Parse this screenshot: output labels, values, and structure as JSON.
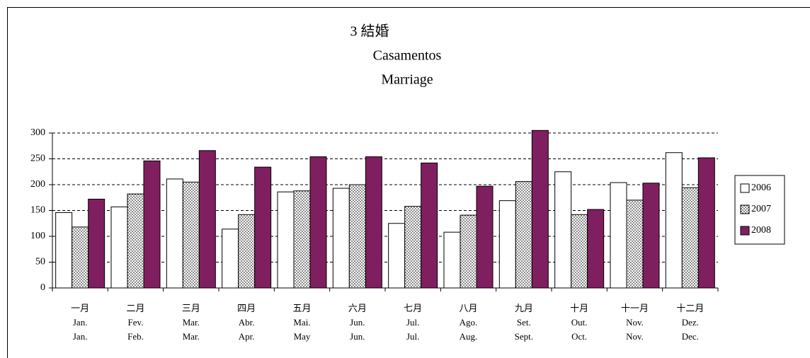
{
  "chart_data": {
    "type": "bar",
    "title": [
      "3 結婚",
      "Casamentos",
      "Marriage"
    ],
    "categories": [
      [
        "一月",
        "Jan.",
        "Jan."
      ],
      [
        "二月",
        "Fev.",
        "Feb."
      ],
      [
        "三月",
        "Mar.",
        "Mar."
      ],
      [
        "四月",
        "Abr.",
        "Apr."
      ],
      [
        "五月",
        "Mai.",
        "May"
      ],
      [
        "六月",
        "Jun.",
        "Jun."
      ],
      [
        "七月",
        "Jul.",
        "Jul."
      ],
      [
        "八月",
        "Ago.",
        "Aug."
      ],
      [
        "九月",
        "Set.",
        "Sept."
      ],
      [
        "十月",
        "Out.",
        "Oct."
      ],
      [
        "十一月",
        "Nov.",
        "Nov."
      ],
      [
        "十二月",
        "Dez.",
        "Dec."
      ]
    ],
    "series": [
      {
        "name": "2006",
        "color": "#ffffff",
        "values": [
          146,
          157,
          211,
          114,
          186,
          193,
          125,
          108,
          169,
          225,
          204,
          262
        ]
      },
      {
        "name": "2007",
        "color": "#ffffff",
        "pattern": "dots",
        "values": [
          118,
          182,
          205,
          142,
          188,
          200,
          158,
          141,
          206,
          142,
          170,
          194
        ]
      },
      {
        "name": "2008",
        "color": "#7f1f5f",
        "values": [
          172,
          246,
          266,
          234,
          254,
          254,
          242,
          197,
          305,
          152,
          203,
          252
        ]
      }
    ],
    "ylim": [
      0,
      300
    ],
    "yticks": [
      0,
      50,
      100,
      150,
      200,
      250,
      300
    ],
    "grid": true,
    "legend": "right"
  }
}
